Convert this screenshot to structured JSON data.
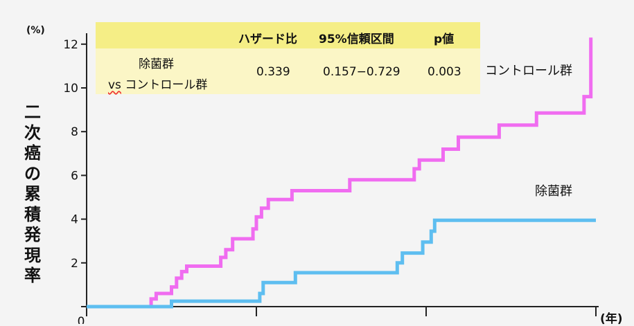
{
  "chart_data": {
    "type": "line",
    "y_unit": "(%)",
    "x_unit": "(年)",
    "ylabel": "二次癌の累積発現率",
    "ylim": [
      0,
      12.5
    ],
    "xlim": [
      0,
      3
    ],
    "yticks": [
      "0",
      "2",
      "4",
      "6",
      "8",
      "10",
      "12"
    ],
    "xticks": [
      "0",
      "",
      "",
      ""
    ],
    "grid": false,
    "colors": {
      "control": "#f06cf0",
      "eradication": "#5ebef0"
    },
    "series": [
      {
        "name": "コントロール群",
        "step": true,
        "points": [
          [
            0,
            0
          ],
          [
            0.38,
            0
          ],
          [
            0.38,
            0.35
          ],
          [
            0.41,
            0.35
          ],
          [
            0.41,
            0.6
          ],
          [
            0.5,
            0.6
          ],
          [
            0.5,
            0.9
          ],
          [
            0.53,
            0.9
          ],
          [
            0.53,
            1.3
          ],
          [
            0.56,
            1.3
          ],
          [
            0.56,
            1.6
          ],
          [
            0.59,
            1.6
          ],
          [
            0.59,
            1.85
          ],
          [
            0.79,
            1.85
          ],
          [
            0.79,
            2.25
          ],
          [
            0.82,
            2.25
          ],
          [
            0.82,
            2.6
          ],
          [
            0.86,
            2.6
          ],
          [
            0.86,
            3.1
          ],
          [
            0.98,
            3.1
          ],
          [
            0.98,
            3.55
          ],
          [
            1.0,
            3.55
          ],
          [
            1.0,
            4.1
          ],
          [
            1.03,
            4.1
          ],
          [
            1.03,
            4.5
          ],
          [
            1.07,
            4.5
          ],
          [
            1.07,
            4.9
          ],
          [
            1.21,
            4.9
          ],
          [
            1.21,
            5.3
          ],
          [
            1.55,
            5.3
          ],
          [
            1.55,
            5.8
          ],
          [
            1.93,
            5.8
          ],
          [
            1.93,
            6.3
          ],
          [
            1.96,
            6.3
          ],
          [
            1.96,
            6.7
          ],
          [
            2.1,
            6.7
          ],
          [
            2.1,
            7.2
          ],
          [
            2.19,
            7.2
          ],
          [
            2.19,
            7.75
          ],
          [
            2.43,
            7.75
          ],
          [
            2.43,
            8.3
          ],
          [
            2.65,
            8.3
          ],
          [
            2.65,
            8.85
          ],
          [
            2.93,
            8.85
          ],
          [
            2.93,
            9.6
          ],
          [
            2.97,
            9.6
          ],
          [
            2.97,
            12.3
          ]
        ]
      },
      {
        "name": "除菌群",
        "step": true,
        "points": [
          [
            0,
            0
          ],
          [
            0.5,
            0
          ],
          [
            0.5,
            0.25
          ],
          [
            1.02,
            0.25
          ],
          [
            1.02,
            0.6
          ],
          [
            1.04,
            0.6
          ],
          [
            1.04,
            1.1
          ],
          [
            1.23,
            1.1
          ],
          [
            1.23,
            1.55
          ],
          [
            1.83,
            1.55
          ],
          [
            1.83,
            2.0
          ],
          [
            1.86,
            2.0
          ],
          [
            1.86,
            2.45
          ],
          [
            1.98,
            2.45
          ],
          [
            1.98,
            2.95
          ],
          [
            2.03,
            2.95
          ],
          [
            2.03,
            3.45
          ],
          [
            2.05,
            3.45
          ],
          [
            2.05,
            3.95
          ],
          [
            3.0,
            3.95
          ]
        ]
      }
    ],
    "table": {
      "headers": [
        "",
        "ハザード比",
        "95%信頼区間",
        "p値"
      ],
      "row_label_line1": "除菌群",
      "row_label_vs": "vs",
      "row_label_rest": "コントロール群",
      "hazard_ratio": "0.339",
      "ci": "0.157−0.729",
      "p": "0.003"
    }
  }
}
